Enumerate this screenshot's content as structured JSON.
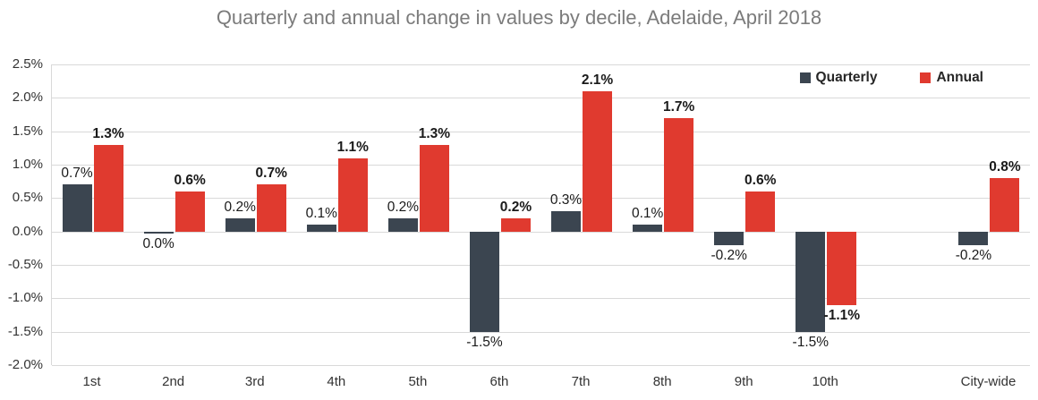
{
  "chart_data": {
    "type": "bar",
    "title": "Quarterly and annual change in values by decile, Adelaide, April 2018",
    "categories": [
      "1st",
      "2nd",
      "3rd",
      "4th",
      "5th",
      "6th",
      "7th",
      "8th",
      "9th",
      "10th",
      "City-wide"
    ],
    "series": [
      {
        "name": "Quarterly",
        "color": "#3b4550",
        "bold_labels": false,
        "values": [
          0.7,
          0.0,
          0.2,
          0.1,
          0.2,
          -1.5,
          0.3,
          0.1,
          -0.2,
          -1.5,
          -0.2
        ],
        "labels": [
          "0.7%",
          "0.0%",
          "0.2%",
          "0.1%",
          "0.2%",
          "-1.5%",
          "0.3%",
          "0.1%",
          "-0.2%",
          "-1.5%",
          "-0.2%"
        ]
      },
      {
        "name": "Annual",
        "color": "#e03a2f",
        "bold_labels": true,
        "values": [
          1.3,
          0.6,
          0.7,
          1.1,
          1.3,
          0.2,
          2.1,
          1.7,
          0.6,
          -1.1,
          0.8
        ],
        "labels": [
          "1.3%",
          "0.6%",
          "0.7%",
          "1.1%",
          "1.3%",
          "0.2%",
          "2.1%",
          "1.7%",
          "0.6%",
          "-1.1%",
          "0.8%"
        ]
      }
    ],
    "ylim": [
      -2.0,
      2.5
    ],
    "yticks": [
      {
        "value": 2.5,
        "label": "2.5%"
      },
      {
        "value": 2.0,
        "label": "2.0%"
      },
      {
        "value": 1.5,
        "label": "1.5%"
      },
      {
        "value": 1.0,
        "label": "1.0%"
      },
      {
        "value": 0.5,
        "label": "0.5%"
      },
      {
        "value": 0.0,
        "label": "0.0%"
      },
      {
        "value": -0.5,
        "label": "-0.5%"
      },
      {
        "value": -1.0,
        "label": "-1.0%"
      },
      {
        "value": -1.5,
        "label": "-1.5%"
      },
      {
        "value": -2.0,
        "label": "-2.0%"
      }
    ],
    "grid": true,
    "legend_position": "top-right",
    "layout": {
      "slots": 12,
      "slot_index": [
        0,
        1,
        2,
        3,
        4,
        5,
        6,
        7,
        8,
        9,
        11
      ]
    }
  }
}
